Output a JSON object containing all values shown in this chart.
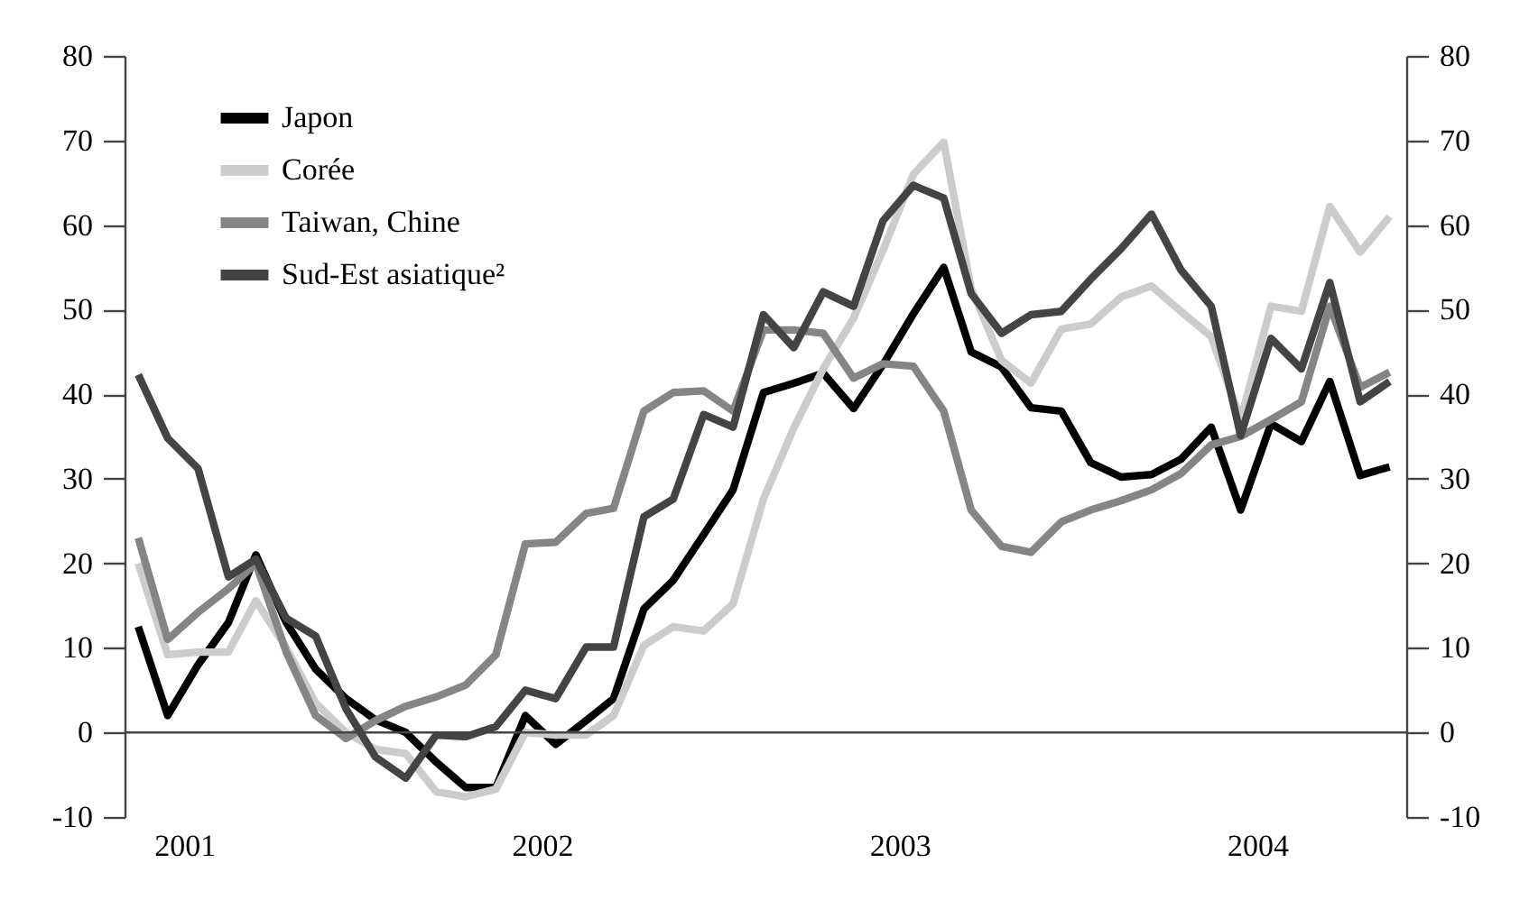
{
  "chart_data": {
    "type": "line",
    "x": [
      "2000-11-15",
      "2000-12-15",
      "2001-01-15",
      "2001-02-15",
      "2001-03-15",
      "2001-04-15",
      "2001-05-15",
      "2001-06-15",
      "2001-07-15",
      "2001-08-15",
      "2001-09-15",
      "2001-10-15",
      "2001-11-15",
      "2001-12-15",
      "2002-01-15",
      "2002-02-15",
      "2002-03-15",
      "2002-04-15",
      "2002-05-15",
      "2002-06-15",
      "2002-07-15",
      "2002-08-15",
      "2002-09-15",
      "2002-10-15",
      "2002-11-15",
      "2002-12-15",
      "2003-01-15",
      "2003-02-15",
      "2003-03-15",
      "2003-04-15",
      "2003-05-15",
      "2003-06-15",
      "2003-07-15",
      "2003-08-15",
      "2003-09-15",
      "2003-10-15",
      "2003-11-15",
      "2003-12-15",
      "2004-01-15",
      "2004-02-15",
      "2004-03-15",
      "2004-04-15",
      "2004-05-15"
    ],
    "series": [
      {
        "name": "Japon",
        "color": "#000000",
        "values": [
          12.5,
          2,
          8,
          13,
          21,
          13,
          7.5,
          4,
          1.5,
          0,
          -3.5,
          -6.5,
          -6.5,
          2,
          -1.4,
          1.4,
          4,
          14.6,
          18,
          23.4,
          28.7,
          40.2,
          41.3,
          42.5,
          38.3,
          43.5,
          49.5,
          55,
          45,
          43.2,
          38.4,
          38,
          31.9,
          30.2,
          30.5,
          32.3,
          36.1,
          26.3,
          36.5,
          34.4,
          41.5,
          30.4,
          31.4
        ]
      },
      {
        "name": "Corée",
        "color": "#cccccc",
        "values": [
          20,
          9.2,
          9.5,
          9.5,
          15.6,
          10,
          3.5,
          0,
          -2,
          -2.5,
          -7,
          -7.6,
          -6.7,
          0,
          -0.3,
          -0.3,
          2,
          10.3,
          12.5,
          12,
          15.2,
          27.6,
          36,
          43,
          49,
          57,
          66,
          69.8,
          52.5,
          44,
          41.3,
          47.7,
          48.3,
          51.5,
          52.8,
          49.8,
          46.8,
          37,
          50.4,
          49.8,
          62.2,
          56.8,
          61
        ]
      },
      {
        "name": "Taiwan, Chine",
        "color": "#858585",
        "values": [
          23,
          11,
          14.2,
          17,
          20,
          9.5,
          2,
          -0.7,
          1.4,
          3.1,
          4.2,
          5.6,
          9.2,
          22.3,
          22.5,
          25.9,
          26.5,
          38,
          40.2,
          40.4,
          38,
          47.6,
          47.6,
          47.2,
          41.9,
          43.6,
          43.3,
          38,
          26.3,
          22,
          21.3,
          24.9,
          26.3,
          27.4,
          28.7,
          30.6,
          34,
          35,
          37,
          39.1,
          50.4,
          40.8,
          42.6
        ]
      },
      {
        "name": "Sud-Est asiatique²",
        "color": "#444444",
        "values": [
          42.3,
          34.8,
          31.2,
          18.4,
          20.5,
          13.5,
          11.4,
          2.8,
          -2.9,
          -5.4,
          -0.3,
          -0.5,
          0.7,
          5,
          4,
          10.1,
          10.1,
          25.5,
          27.6,
          37.6,
          36.1,
          49.4,
          45.5,
          52.1,
          50.4,
          60.5,
          64.7,
          63.2,
          51.9,
          47.2,
          49.4,
          49.8,
          53.6,
          57.2,
          61.3,
          54.7,
          50.4,
          35.1,
          46.6,
          43,
          53.2,
          39.1,
          41.5
        ]
      }
    ],
    "xlim": [
      "2000-11-01",
      "2004-06-01"
    ],
    "xticks": [
      {
        "value": "2001-01-01",
        "label": "2001"
      },
      {
        "value": "2002-01-01",
        "label": "2002"
      },
      {
        "value": "2003-01-01",
        "label": "2003"
      },
      {
        "value": "2004-01-01",
        "label": "2004"
      }
    ],
    "ylim": [
      -10,
      80
    ],
    "yticks": [
      -10,
      0,
      10,
      20,
      30,
      40,
      50,
      60,
      70,
      80
    ],
    "y2lim": [
      -10,
      80
    ],
    "y2ticks": [
      -10,
      0,
      10,
      20,
      30,
      40,
      50,
      60,
      70,
      80
    ],
    "ref_lines": [
      {
        "axis": "y",
        "value": 0
      }
    ],
    "grid": false,
    "legend": "top left",
    "line_style": "solid"
  }
}
